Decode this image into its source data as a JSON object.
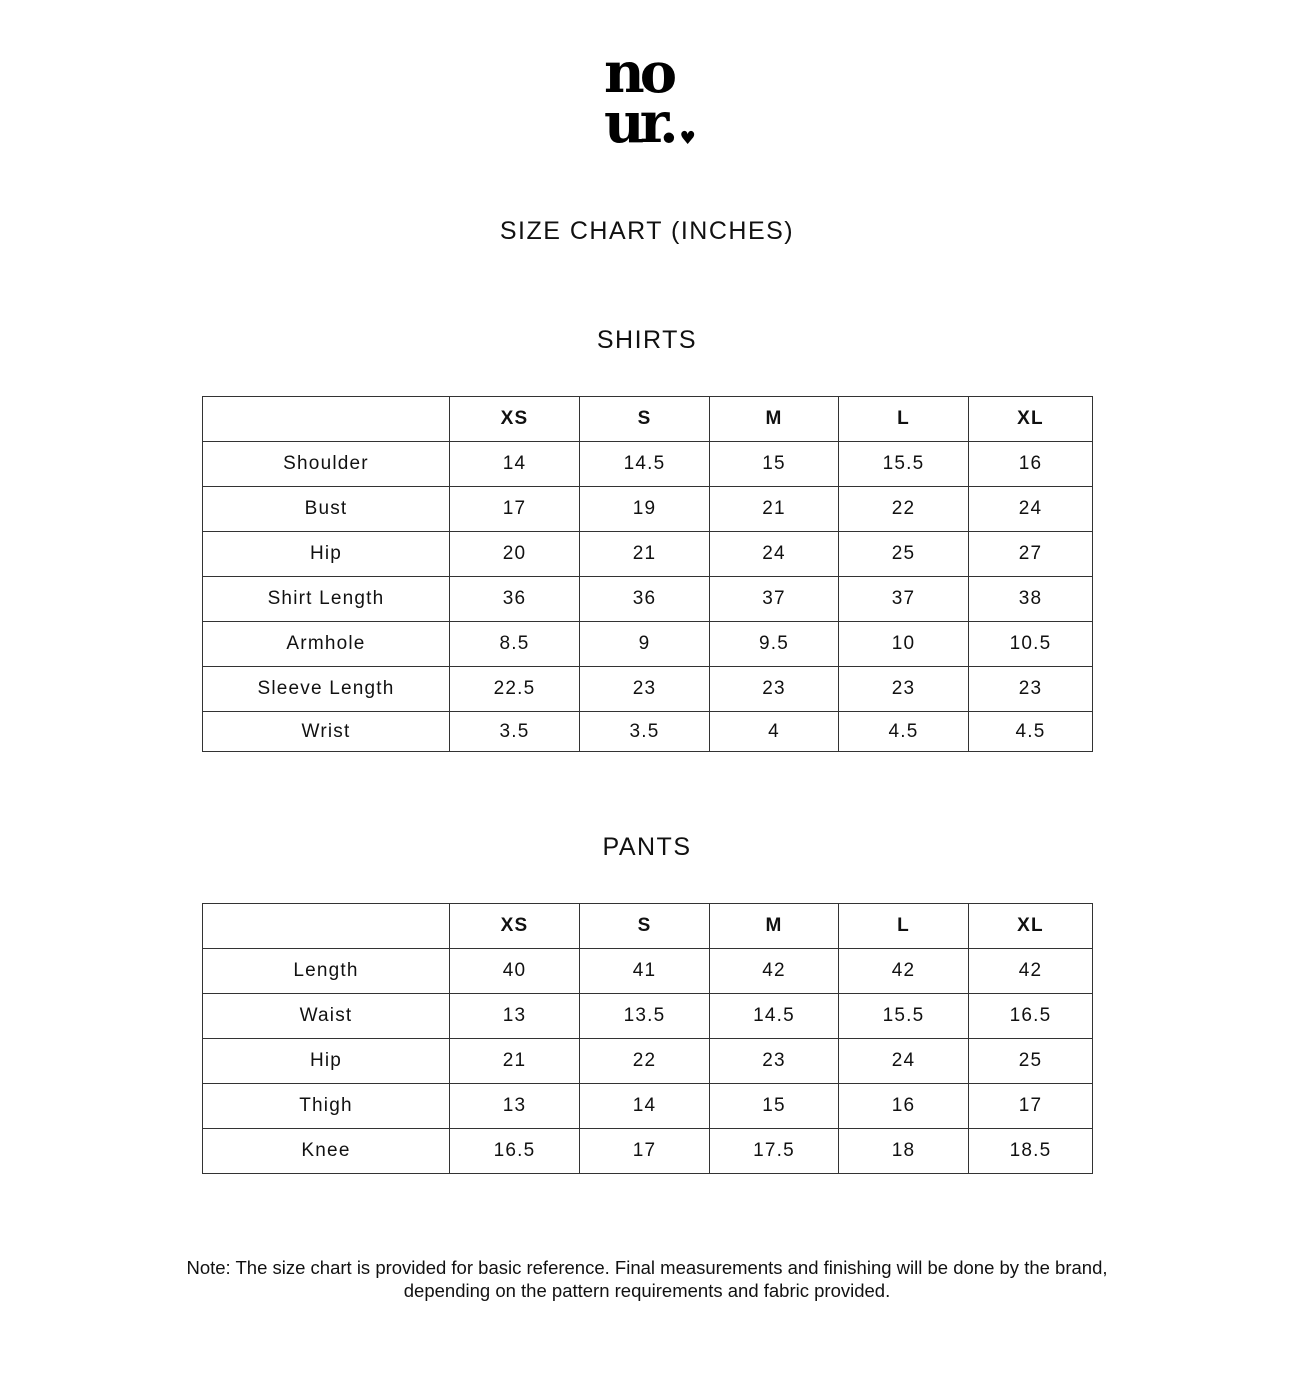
{
  "logo": {
    "line1": "no",
    "line2": "ur.",
    "heart": "♥"
  },
  "title": "SIZE CHART (INCHES)",
  "shirts": {
    "heading": "SHIRTS",
    "sizes": [
      "XS",
      "S",
      "M",
      "L",
      "XL"
    ],
    "rows": [
      {
        "label": "Shoulder",
        "values": [
          "14",
          "14.5",
          "15",
          "15.5",
          "16"
        ]
      },
      {
        "label": "Bust",
        "values": [
          "17",
          "19",
          "21",
          "22",
          "24"
        ]
      },
      {
        "label": "Hip",
        "values": [
          "20",
          "21",
          "24",
          "25",
          "27"
        ]
      },
      {
        "label": "Shirt Length",
        "values": [
          "36",
          "36",
          "37",
          "37",
          "38"
        ]
      },
      {
        "label": "Armhole",
        "values": [
          "8.5",
          "9",
          "9.5",
          "10",
          "10.5"
        ]
      },
      {
        "label": "Sleeve Length",
        "values": [
          "22.5",
          "23",
          "23",
          "23",
          "23"
        ]
      },
      {
        "label": "Wrist",
        "values": [
          "3.5",
          "3.5",
          "4",
          "4.5",
          "4.5"
        ]
      }
    ]
  },
  "pants": {
    "heading": "PANTS",
    "sizes": [
      "XS",
      "S",
      "M",
      "L",
      "XL"
    ],
    "rows": [
      {
        "label": "Length",
        "values": [
          "40",
          "41",
          "42",
          "42",
          "42"
        ]
      },
      {
        "label": "Waist",
        "values": [
          "13",
          "13.5",
          "14.5",
          "15.5",
          "16.5"
        ]
      },
      {
        "label": "Hip",
        "values": [
          "21",
          "22",
          "23",
          "24",
          "25"
        ]
      },
      {
        "label": "Thigh",
        "values": [
          "13",
          "14",
          "15",
          "16",
          "17"
        ]
      },
      {
        "label": "Knee",
        "values": [
          "16.5",
          "17",
          "17.5",
          "18",
          "18.5"
        ]
      }
    ]
  },
  "note": "Note: The size chart is provided for basic reference. Final measurements and finishing will be done by the brand, depending on the pattern requirements and fabric provided."
}
